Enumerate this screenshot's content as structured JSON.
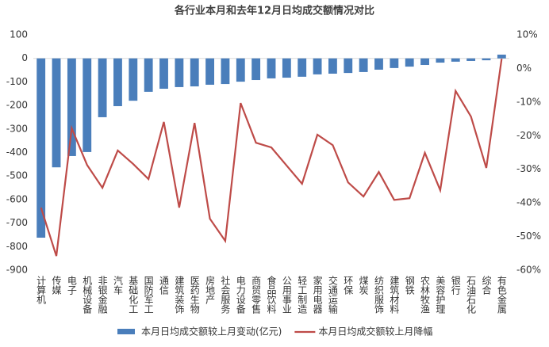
{
  "chart_data": {
    "type": "combo",
    "title": "各行业本月和去年12月日均成交额情况对比",
    "categories": [
      "计算机",
      "传媒",
      "电子",
      "机械设备",
      "非银金融",
      "汽车",
      "基础化工",
      "国防军工",
      "通信",
      "建筑装饰",
      "医药生物",
      "房地产",
      "社会服务",
      "电力设备",
      "商贸零售",
      "食品饮料",
      "公用事业",
      "轻工制造",
      "家用电器",
      "交通运输",
      "环保",
      "煤炭",
      "纺织服饰",
      "建筑材料",
      "钢铁",
      "农林牧渔",
      "美容护理",
      "银行",
      "石油石化",
      "综合",
      "有色金属"
    ],
    "series": [
      {
        "name": "本月日均成交额较上月变动(亿元)",
        "type": "bar",
        "color": "#4a7ebb",
        "values": [
          -762,
          -463,
          -415,
          -398,
          -250,
          -203,
          -180,
          -142,
          -129,
          -122,
          -119,
          -112,
          -109,
          -99,
          -92,
          -85,
          -82,
          -78,
          -68,
          -65,
          -62,
          -58,
          -48,
          -41,
          -35,
          -28,
          -18,
          -14,
          -11,
          -8,
          16
        ]
      },
      {
        "name": "本月日均成交额较上月降幅",
        "type": "line",
        "axis": "y2",
        "color": "#be4b48",
        "values": [
          -41.4,
          -55.8,
          -17.8,
          -28.7,
          -35.5,
          -24.4,
          -28.4,
          -32.9,
          -15.9,
          -41.4,
          -16.2,
          -44.7,
          -51.3,
          -10.3,
          -22.1,
          -23.5,
          -28.9,
          -34.3,
          -19.7,
          -22.8,
          -33.9,
          -38.1,
          -30.8,
          -39.1,
          -38.6,
          -25.1,
          -36.2,
          -6.7,
          -14.3,
          -29.6,
          2.9
        ]
      }
    ],
    "ylim": [
      -900,
      100
    ],
    "yticks": [
      -900,
      -800,
      -700,
      -600,
      -500,
      -400,
      -300,
      -200,
      -100,
      0,
      100
    ],
    "y2lim": [
      -60,
      10
    ],
    "y2ticks": [
      {
        "value": -60,
        "label": "-60%"
      },
      {
        "value": -50,
        "label": "-50%"
      },
      {
        "value": -40,
        "label": "-40%"
      },
      {
        "value": -30,
        "label": "-30%"
      },
      {
        "value": -20,
        "label": "-20%"
      },
      {
        "value": -10,
        "label": "-10%"
      },
      {
        "value": 0,
        "label": "0%"
      },
      {
        "value": 10,
        "label": "10%"
      }
    ],
    "legend": "bottom"
  }
}
